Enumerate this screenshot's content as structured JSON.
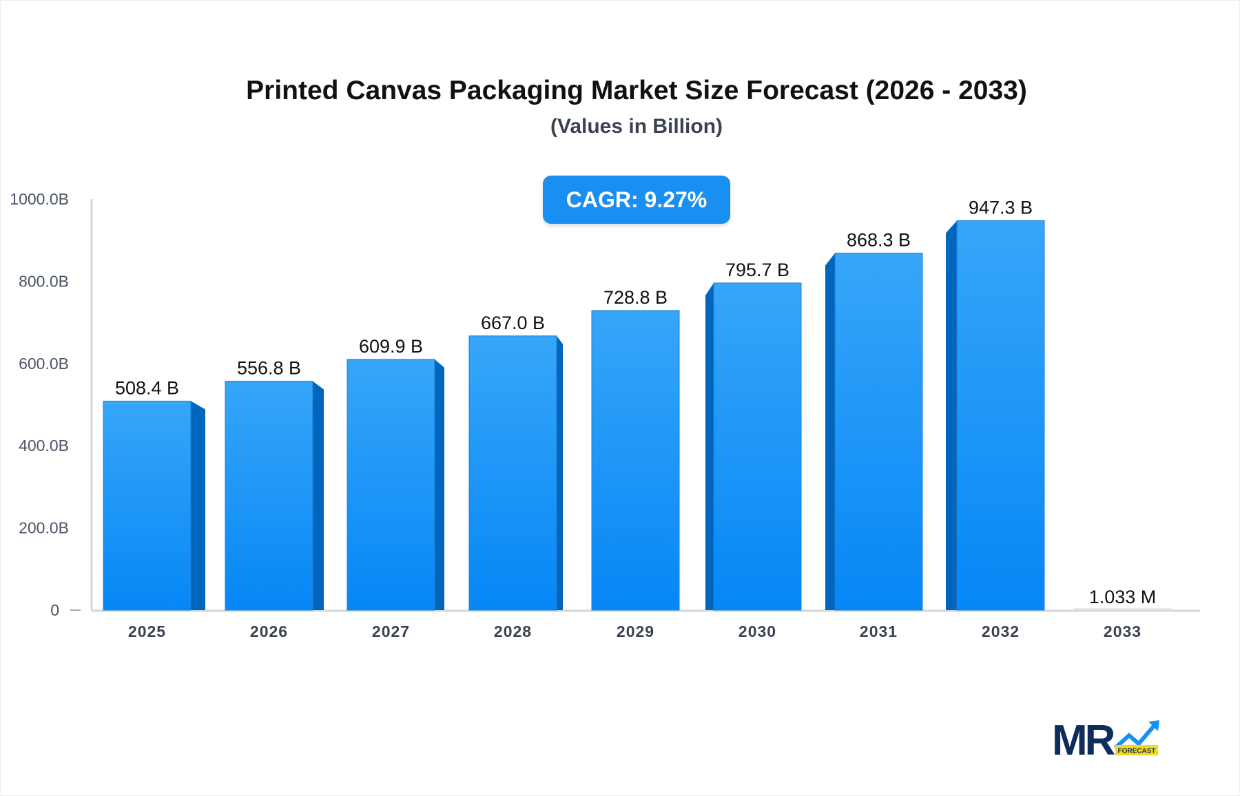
{
  "title": "Printed Canvas Packaging Market Size Forecast (2026 - 2033)",
  "subtitle": "(Values in Billion)",
  "cagr_label": "CAGR: 9.27%",
  "logo": {
    "text": "MR",
    "tag": "FORECAST"
  },
  "colors": {
    "bar_top": "#36a6f8",
    "bar_bottom": "#0687f6",
    "bar_side": "#0066bd",
    "cagr_bg": "#1a8ff2",
    "axis": "#d4d6dd"
  },
  "chart_data": {
    "type": "bar",
    "title": "Printed Canvas Packaging Market Size Forecast (2026 - 2033)",
    "subtitle": "(Values in Billion)",
    "categories": [
      "2025",
      "2026",
      "2027",
      "2028",
      "2029",
      "2030",
      "2031",
      "2032",
      "2033"
    ],
    "values": [
      508.4,
      556.8,
      609.9,
      667.0,
      728.8,
      795.7,
      868.3,
      947.3,
      0.001033
    ],
    "data_labels": [
      "508.4 B",
      "556.8 B",
      "609.9 B",
      "667.0 B",
      "728.8 B",
      "795.7 B",
      "868.3 B",
      "947.3 B",
      "1.033 M"
    ],
    "ylim": [
      0,
      1000
    ],
    "yticks": [
      0,
      200,
      400,
      600,
      800,
      1000
    ],
    "ytick_labels": [
      "0",
      "200.0B",
      "400.0B",
      "600.0B",
      "800.0B",
      "1000.0B"
    ],
    "grid": false,
    "legend": "none"
  }
}
